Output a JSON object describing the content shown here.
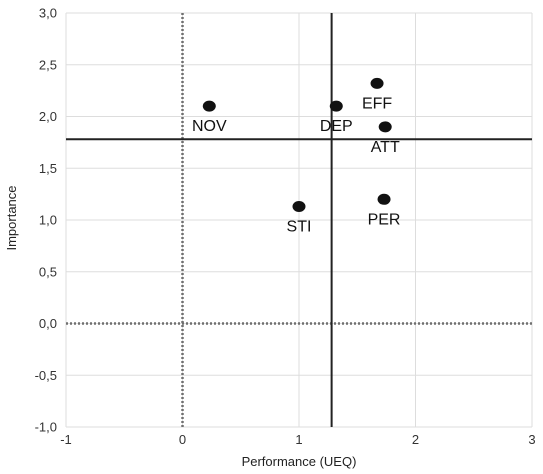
{
  "chart_data": {
    "type": "scatter",
    "title": "",
    "xlabel": "Performance (UEQ)",
    "ylabel": "Importance",
    "xlim": [
      -1,
      3
    ],
    "ylim": [
      -1,
      3
    ],
    "x_ticks": [
      -1,
      0,
      1,
      2,
      3
    ],
    "y_ticks": [
      -1.0,
      -0.5,
      0.0,
      0.5,
      1.0,
      1.5,
      2.0,
      2.5,
      3.0
    ],
    "x_tick_labels": [
      "-1",
      "0",
      "1",
      "2",
      "3"
    ],
    "y_tick_labels": [
      "-1,0",
      "-0,5",
      "0,0",
      "0,5",
      "1,0",
      "1,5",
      "2,0",
      "2,5",
      "3,0"
    ],
    "grid": true,
    "zero_lines": {
      "x": 0,
      "y": 0,
      "style": "dotted",
      "color": "#707070"
    },
    "threshold_lines": {
      "x": 1.28,
      "y": 1.78,
      "color": "#222222"
    },
    "point_color": "#111111",
    "points": [
      {
        "label": "NOV",
        "x": 0.23,
        "y": 2.1,
        "label_pos": "below"
      },
      {
        "label": "DEP",
        "x": 1.32,
        "y": 2.1,
        "label_pos": "below"
      },
      {
        "label": "EFF",
        "x": 1.67,
        "y": 2.32,
        "label_pos": "below"
      },
      {
        "label": "ATT",
        "x": 1.74,
        "y": 1.9,
        "label_pos": "below"
      },
      {
        "label": "STI",
        "x": 1.0,
        "y": 1.13,
        "label_pos": "below"
      },
      {
        "label": "PER",
        "x": 1.73,
        "y": 1.2,
        "label_pos": "below"
      }
    ]
  }
}
